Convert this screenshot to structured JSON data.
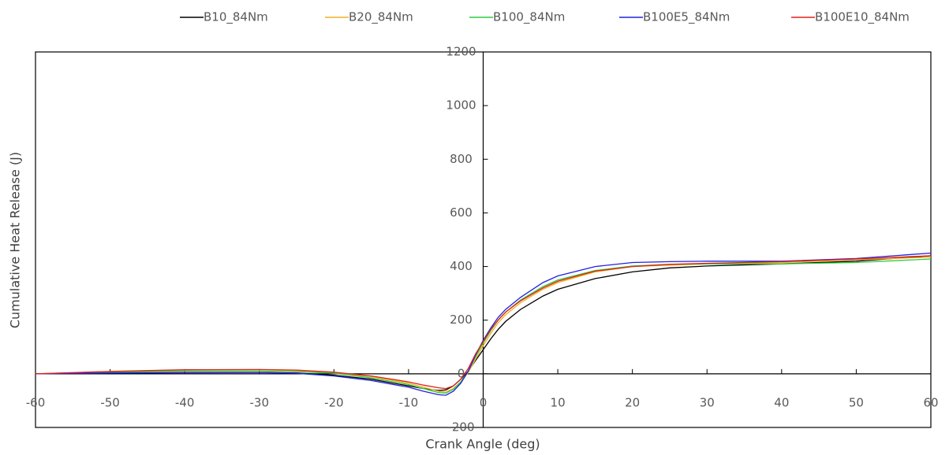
{
  "chart_data": {
    "type": "line",
    "xlabel": "Crank Angle (deg)",
    "ylabel": "Cumulative Heat Release (J)",
    "x": [
      -60,
      -50,
      -40,
      -30,
      -25,
      -20,
      -15,
      -10,
      -8,
      -6,
      -5,
      -4,
      -3,
      -2,
      -1,
      0,
      1,
      2,
      3,
      5,
      8,
      10,
      15,
      20,
      25,
      30,
      40,
      50,
      60
    ],
    "series": [
      {
        "name": "B10_84Nm",
        "color": "#000000",
        "values": [
          0,
          2,
          4,
          5,
          3,
          -5,
          -20,
          -45,
          -55,
          -62,
          -60,
          -45,
          -20,
          10,
          50,
          90,
          130,
          165,
          195,
          240,
          290,
          315,
          355,
          380,
          395,
          402,
          410,
          420,
          440
        ]
      },
      {
        "name": "B20_84Nm",
        "color": "#f0b020",
        "values": [
          0,
          8,
          14,
          15,
          12,
          5,
          -10,
          -35,
          -50,
          -65,
          -68,
          -55,
          -30,
          5,
          55,
          105,
          150,
          190,
          220,
          265,
          315,
          340,
          380,
          400,
          405,
          410,
          415,
          425,
          435
        ]
      },
      {
        "name": "B100_84Nm",
        "color": "#2ecc40",
        "values": [
          0,
          6,
          10,
          10,
          8,
          2,
          -15,
          -40,
          -55,
          -70,
          -72,
          -58,
          -30,
          10,
          65,
          115,
          160,
          200,
          230,
          275,
          325,
          350,
          385,
          402,
          408,
          410,
          410,
          415,
          428
        ]
      },
      {
        "name": "B100E5_84Nm",
        "color": "#2020e0",
        "values": [
          0,
          3,
          5,
          5,
          2,
          -8,
          -25,
          -50,
          -65,
          -78,
          -80,
          -65,
          -35,
          10,
          70,
          125,
          170,
          210,
          240,
          285,
          340,
          365,
          400,
          415,
          418,
          420,
          420,
          430,
          450
        ]
      },
      {
        "name": "B100E10_84Nm",
        "color": "#e0201c",
        "values": [
          0,
          9,
          15,
          16,
          14,
          6,
          -8,
          -30,
          -42,
          -52,
          -55,
          -45,
          -20,
          20,
          75,
          120,
          165,
          200,
          230,
          272,
          320,
          345,
          383,
          400,
          408,
          412,
          418,
          428,
          440
        ]
      }
    ],
    "xlim": [
      -60,
      60
    ],
    "xticks": [
      -60,
      -50,
      -40,
      -30,
      -20,
      -10,
      0,
      10,
      20,
      30,
      40,
      50,
      60
    ],
    "ylim": [
      -200,
      1200
    ],
    "yticks": [
      -200,
      0,
      200,
      400,
      600,
      800,
      1000,
      1200
    ],
    "legend": "top"
  }
}
